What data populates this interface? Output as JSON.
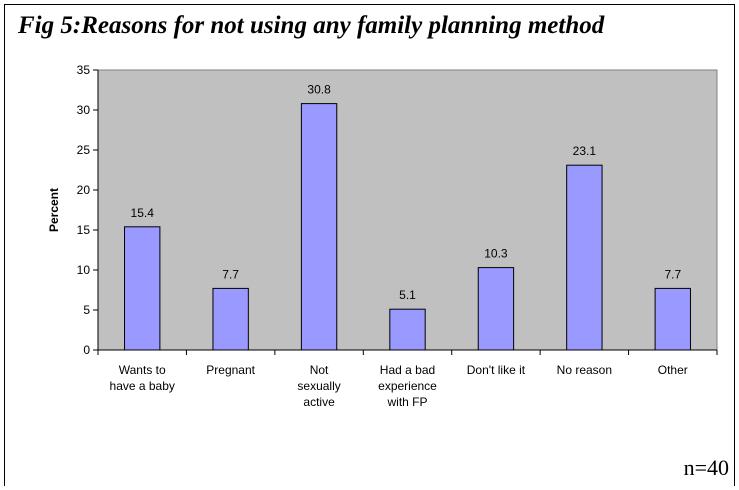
{
  "figure": {
    "title": "Fig 5:Reasons for not using any family planning method",
    "footnote": "n=40"
  },
  "colors": {
    "bar_fill": "#9999ff",
    "bar_stroke": "#000000",
    "plot_background": "#c0c0c0"
  },
  "chart_data": {
    "type": "bar",
    "title": "Fig 5:Reasons for not using any family planning method",
    "xlabel": "",
    "ylabel": "Percent",
    "ylim": [
      0,
      35
    ],
    "yticks": [
      0,
      5,
      10,
      15,
      20,
      25,
      30,
      35
    ],
    "grid": false,
    "legend": "none",
    "categories": [
      [
        "Wants to",
        "have a baby"
      ],
      [
        "Pregnant"
      ],
      [
        "Not",
        "sexually",
        "active"
      ],
      [
        "Had a bad",
        "experience",
        "with FP"
      ],
      [
        "Don't like it"
      ],
      [
        "No reason"
      ],
      [
        "Other"
      ]
    ],
    "values": [
      15.4,
      7.7,
      30.8,
      5.1,
      10.3,
      23.1,
      7.7
    ],
    "data_labels": [
      "15.4",
      "7.7",
      "30.8",
      "5.1",
      "10.3",
      "23.1",
      "7.7"
    ]
  }
}
